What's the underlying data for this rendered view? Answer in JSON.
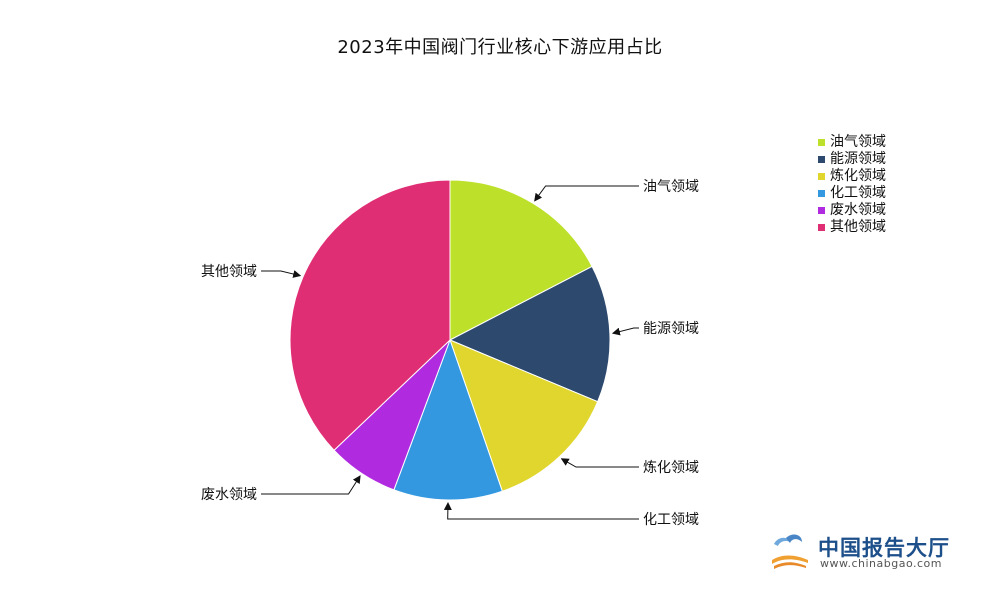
{
  "chart_data": {
    "type": "pie",
    "title": "2023年中国阀门行业核心下游应用占比",
    "legend_position": "top-right",
    "slices": [
      {
        "label": "油气领域",
        "value": 17.4,
        "color": "#bde02a"
      },
      {
        "label": "能源领域",
        "value": 13.9,
        "color": "#2d4a6e"
      },
      {
        "label": "炼化领域",
        "value": 13.4,
        "color": "#e0d62e"
      },
      {
        "label": "化工领域",
        "value": 11.0,
        "color": "#3498e0"
      },
      {
        "label": "废水领域",
        "value": 7.2,
        "color": "#b02be0"
      },
      {
        "label": "其他领域",
        "value": 37.1,
        "color": "#e02e75"
      }
    ]
  },
  "watermark": {
    "name": "中国报告大厅",
    "url": "www.chinabgao.com"
  }
}
